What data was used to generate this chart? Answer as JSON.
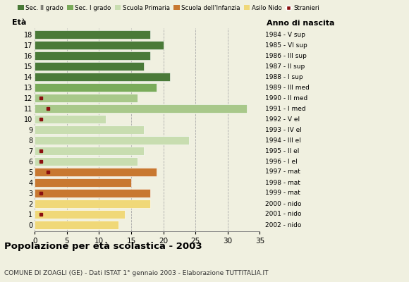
{
  "ages": [
    18,
    17,
    16,
    15,
    14,
    13,
    12,
    11,
    10,
    9,
    8,
    7,
    6,
    5,
    4,
    3,
    2,
    1,
    0
  ],
  "years": [
    "1984 - V sup",
    "1985 - VI sup",
    "1986 - III sup",
    "1987 - II sup",
    "1988 - I sup",
    "1989 - III med",
    "1990 - II med",
    "1991 - I med",
    "1992 - V el",
    "1993 - IV el",
    "1994 - III el",
    "1995 - II el",
    "1996 - I el",
    "1997 - mat",
    "1998 - mat",
    "1999 - mat",
    "2000 - nido",
    "2001 - nido",
    "2002 - nido"
  ],
  "values": [
    18,
    20,
    18,
    17,
    21,
    19,
    16,
    33,
    11,
    17,
    24,
    17,
    16,
    19,
    15,
    18,
    18,
    14,
    13
  ],
  "age_colors": {
    "18": "#4a7a38",
    "17": "#4a7a38",
    "16": "#4a7a38",
    "15": "#4a7a38",
    "14": "#4a7a38",
    "13": "#7aab5a",
    "12": "#a8c88a",
    "11": "#a8c88a",
    "10": "#c8ddb0",
    "9": "#c8ddb0",
    "8": "#c8ddb0",
    "7": "#c8ddb0",
    "6": "#c8ddb0",
    "5": "#c87830",
    "4": "#c87830",
    "3": "#c87830",
    "2": "#f0d878",
    "1": "#f0d878",
    "0": "#f0d878"
  },
  "stranieri_x": {
    "18": 0,
    "17": 0,
    "16": 0,
    "15": 0,
    "14": 0,
    "13": 0,
    "12": 1,
    "11": 2,
    "10": 1,
    "9": 0,
    "8": 0,
    "7": 1,
    "6": 1,
    "5": 2,
    "4": 0,
    "3": 1,
    "2": 0,
    "1": 1,
    "0": 0
  },
  "stranieri_color": "#8b1010",
  "title": "Popolazione per età scolastica - 2003",
  "subtitle": "COMUNE DI ZOAGLI (GE) - Dati ISTAT 1° gennaio 2003 - Elaborazione TUTTITALIA.IT",
  "xlabel_eta": "Età",
  "xlabel_anno": "Anno di nascita",
  "xlim": [
    0,
    35
  ],
  "xticks": [
    0,
    5,
    10,
    15,
    20,
    25,
    30,
    35
  ],
  "legend_labels": [
    "Sec. II grado",
    "Sec. I grado",
    "Scuola Primaria",
    "Scuola dell'Infanzia",
    "Asilo Nido",
    "Stranieri"
  ],
  "legend_colors": [
    "#4a7a38",
    "#7aab5a",
    "#c8ddb0",
    "#c87830",
    "#f0d878",
    "#8b1010"
  ],
  "background_color": "#f0f0e0"
}
